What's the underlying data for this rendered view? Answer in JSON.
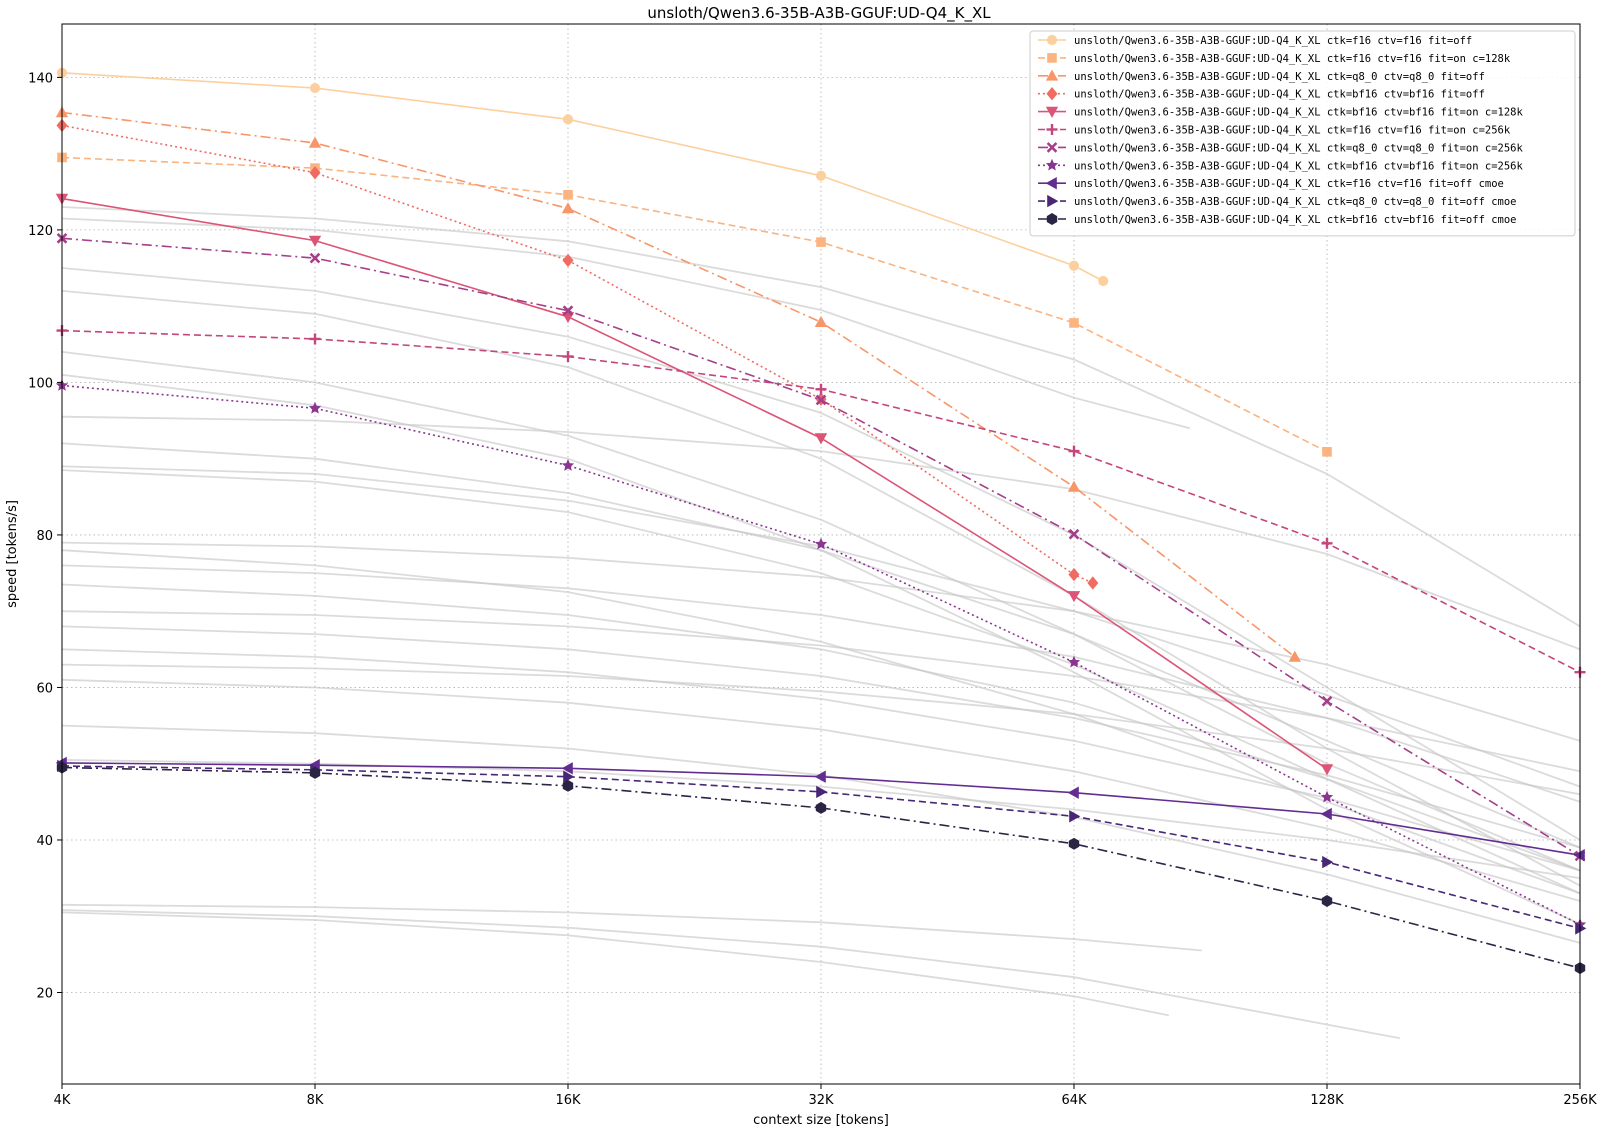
{
  "chart_data": {
    "type": "line",
    "title": "unsloth/Qwen3.6-35B-A3B-GGUF:UD-Q4_K_XL",
    "xlabel": "context size [tokens]",
    "ylabel": "speed [tokens/s]",
    "x_scale": "log2",
    "xlim": [
      4096,
      262144
    ],
    "ylim": [
      8,
      147
    ],
    "xticks": [
      {
        "value": 4096,
        "label": "4K"
      },
      {
        "value": 8192,
        "label": "8K"
      },
      {
        "value": 16384,
        "label": "16K"
      },
      {
        "value": 32768,
        "label": "32K"
      },
      {
        "value": 65536,
        "label": "64K"
      },
      {
        "value": 131072,
        "label": "128K"
      },
      {
        "value": 262144,
        "label": "256K"
      }
    ],
    "yticks": [
      20,
      40,
      60,
      80,
      100,
      120,
      140
    ],
    "grid": true,
    "legend_position": "top-right",
    "series": [
      {
        "name": "unsloth/Qwen3.6-35B-A3B-GGUF:UD-Q4_K_XL ctk=f16  ctv=f16  fit=off",
        "color": "#fcd09e",
        "marker": "circle",
        "dash": "solid",
        "x": [
          4096,
          8192,
          16384,
          32768,
          65536,
          71000
        ],
        "y": [
          140.6,
          138.6,
          134.5,
          127.1,
          115.3,
          113.3
        ]
      },
      {
        "name": "unsloth/Qwen3.6-35B-A3B-GGUF:UD-Q4_K_XL ctk=f16  ctv=f16  fit=on  c=128k",
        "color": "#fbb37f",
        "marker": "square",
        "dash": "dashed",
        "x": [
          4096,
          8192,
          16384,
          32768,
          65536,
          131072
        ],
        "y": [
          129.5,
          128.1,
          124.6,
          118.4,
          107.8,
          90.9
        ]
      },
      {
        "name": "unsloth/Qwen3.6-35B-A3B-GGUF:UD-Q4_K_XL ctk=q8_0 ctv=q8_0 fit=off",
        "color": "#f89669",
        "marker": "triangle-up",
        "dash": "dashdot",
        "x": [
          4096,
          8192,
          16384,
          32768,
          65536,
          120000
        ],
        "y": [
          135.4,
          131.4,
          122.8,
          107.9,
          86.3,
          64.0
        ]
      },
      {
        "name": "unsloth/Qwen3.6-35B-A3B-GGUF:UD-Q4_K_XL ctk=bf16 ctv=bf16 fit=off",
        "color": "#f06b62",
        "marker": "diamond",
        "dash": "dotted",
        "x": [
          4096,
          8192,
          16384,
          32768,
          65536,
          69000
        ],
        "y": [
          133.7,
          127.5,
          116.0,
          97.8,
          74.8,
          73.7
        ]
      },
      {
        "name": "unsloth/Qwen3.6-35B-A3B-GGUF:UD-Q4_K_XL ctk=bf16 ctv=bf16 fit=on  c=128k",
        "color": "#dc5476",
        "marker": "triangle-down",
        "dash": "solid",
        "x": [
          4096,
          8192,
          16384,
          32768,
          65536,
          131072
        ],
        "y": [
          124.1,
          118.6,
          108.6,
          92.7,
          72.0,
          49.3
        ]
      },
      {
        "name": "unsloth/Qwen3.6-35B-A3B-GGUF:UD-Q4_K_XL ctk=f16  ctv=f16  fit=on  c=256k",
        "color": "#c4467c",
        "marker": "plus",
        "dash": "dashed",
        "x": [
          4096,
          8192,
          16384,
          32768,
          65536,
          131072,
          262144
        ],
        "y": [
          106.8,
          105.7,
          103.4,
          99.1,
          91.0,
          78.9,
          62.0
        ]
      },
      {
        "name": "unsloth/Qwen3.6-35B-A3B-GGUF:UD-Q4_K_XL ctk=q8_0 ctv=q8_0 fit=on  c=256k",
        "color": "#a53f8a",
        "marker": "x",
        "dash": "dashdot",
        "x": [
          4096,
          8192,
          16384,
          32768,
          65536,
          131072,
          262144
        ],
        "y": [
          118.9,
          116.3,
          109.4,
          97.7,
          80.1,
          58.2,
          37.9
        ]
      },
      {
        "name": "unsloth/Qwen3.6-35B-A3B-GGUF:UD-Q4_K_XL ctk=bf16 ctv=bf16 fit=on  c=256k",
        "color": "#8a3690",
        "marker": "star",
        "dash": "dotted",
        "x": [
          4096,
          8192,
          16384,
          32768,
          65536,
          131072,
          262144
        ],
        "y": [
          99.6,
          96.6,
          89.1,
          78.8,
          63.3,
          45.6,
          28.9
        ]
      },
      {
        "name": "unsloth/Qwen3.6-35B-A3B-GGUF:UD-Q4_K_XL ctk=f16  ctv=f16  fit=off cmoe",
        "color": "#632c91",
        "marker": "triangle-left",
        "dash": "solid",
        "x": [
          4096,
          8192,
          16384,
          32768,
          65536,
          131072,
          262144
        ],
        "y": [
          50.1,
          49.8,
          49.4,
          48.3,
          46.2,
          43.4,
          38.0
        ]
      },
      {
        "name": "unsloth/Qwen3.6-35B-A3B-GGUF:UD-Q4_K_XL ctk=q8_0 ctv=q8_0 fit=off cmoe",
        "color": "#482775",
        "marker": "triangle-right",
        "dash": "dashed",
        "x": [
          4096,
          8192,
          16384,
          32768,
          65536,
          131072,
          262144
        ],
        "y": [
          49.7,
          49.2,
          48.3,
          46.3,
          43.1,
          37.1,
          28.4
        ]
      },
      {
        "name": "unsloth/Qwen3.6-35B-A3B-GGUF:UD-Q4_K_XL ctk=bf16 ctv=bf16 fit=off cmoe",
        "color": "#2c2444",
        "marker": "hexagon",
        "dash": "dashdot",
        "x": [
          4096,
          8192,
          16384,
          32768,
          65536,
          131072,
          262144
        ],
        "y": [
          49.5,
          48.8,
          47.1,
          44.2,
          39.5,
          32.0,
          23.2
        ]
      }
    ],
    "background_series": [
      {
        "x": [
          4096,
          8192,
          16384,
          32768,
          65536,
          131072,
          262144
        ],
        "y": [
          123.0,
          121.5,
          118.5,
          112.5,
          103.0,
          88.0,
          68.0
        ]
      },
      {
        "x": [
          4096,
          8192,
          16384,
          32768,
          65536,
          131072,
          262144
        ],
        "y": [
          115.0,
          112.0,
          106.0,
          96.0,
          80.0,
          60.0,
          40.0
        ]
      },
      {
        "x": [
          4096,
          8192,
          16384,
          32768,
          65536,
          90000
        ],
        "y": [
          121.5,
          120.0,
          116.5,
          109.5,
          98.0,
          94.0
        ]
      },
      {
        "x": [
          4096,
          8192,
          16384,
          32768,
          65536,
          131072,
          262144
        ],
        "y": [
          112.0,
          109.0,
          102.0,
          90.0,
          72.0,
          52.0,
          34.0
        ]
      },
      {
        "x": [
          4096,
          8192,
          16384,
          32768,
          65536,
          131072,
          262144
        ],
        "y": [
          104.0,
          100.0,
          93.0,
          82.0,
          67.0,
          50.0,
          36.0
        ]
      },
      {
        "x": [
          4096,
          8192,
          16384,
          32768,
          65536,
          131072,
          262144
        ],
        "y": [
          101.0,
          97.0,
          90.0,
          78.0,
          62.0,
          44.0,
          29.0
        ]
      },
      {
        "x": [
          4096,
          8192,
          16384,
          32768,
          65536,
          131072,
          262144
        ],
        "y": [
          95.5,
          95.0,
          93.5,
          91.0,
          86.0,
          77.5,
          65.0
        ]
      },
      {
        "x": [
          4096,
          8192,
          16384,
          32768,
          65536,
          131072,
          262144
        ],
        "y": [
          92.0,
          90.0,
          85.5,
          78.0,
          67.0,
          53.0,
          39.0
        ]
      },
      {
        "x": [
          4096,
          8192,
          16384,
          32768,
          65536,
          131072,
          262144
        ],
        "y": [
          89.0,
          88.0,
          84.5,
          78.5,
          70.0,
          59.0,
          47.0
        ]
      },
      {
        "x": [
          4096,
          8192,
          16384,
          32768,
          65536,
          131072,
          262144
        ],
        "y": [
          88.5,
          87.0,
          83.0,
          75.0,
          63.0,
          48.0,
          33.0
        ]
      },
      {
        "x": [
          4096,
          8192,
          16384,
          32768,
          65536,
          131072,
          262144
        ],
        "y": [
          79.0,
          78.5,
          77.0,
          74.5,
          70.0,
          63.0,
          53.0
        ]
      },
      {
        "x": [
          4096,
          8192,
          16384,
          32768,
          65536,
          131072,
          262144
        ],
        "y": [
          78.0,
          76.0,
          72.5,
          66.0,
          56.5,
          45.0,
          33.0
        ]
      },
      {
        "x": [
          4096,
          8192,
          16384,
          32768,
          65536,
          131072,
          262144
        ],
        "y": [
          76.0,
          75.0,
          73.0,
          69.5,
          64.0,
          56.0,
          45.0
        ]
      },
      {
        "x": [
          4096,
          8192,
          16384,
          32768,
          65536,
          131072,
          262144
        ],
        "y": [
          73.5,
          72.0,
          69.5,
          65.0,
          58.0,
          48.0,
          36.0
        ]
      },
      {
        "x": [
          4096,
          8192,
          16384,
          32768,
          65536,
          131072,
          262144
        ],
        "y": [
          70.0,
          69.5,
          68.0,
          65.5,
          61.5,
          56.0,
          49.0
        ]
      },
      {
        "x": [
          4096,
          8192,
          16384,
          32768,
          65536,
          131072,
          262144
        ],
        "y": [
          68.0,
          67.0,
          65.0,
          61.5,
          56.0,
          48.5,
          39.0
        ]
      },
      {
        "x": [
          4096,
          8192,
          16384,
          32768,
          65536,
          131072,
          262144
        ],
        "y": [
          65.0,
          64.0,
          62.0,
          58.5,
          53.0,
          45.5,
          36.0
        ]
      },
      {
        "x": [
          4096,
          8192,
          16384,
          32768,
          65536,
          131072,
          262144
        ],
        "y": [
          63.0,
          62.5,
          61.5,
          59.5,
          56.5,
          52.0,
          46.0
        ]
      },
      {
        "x": [
          4096,
          8192,
          16384,
          32768,
          65536,
          131072,
          262144
        ],
        "y": [
          61.0,
          60.0,
          58.0,
          54.5,
          49.0,
          41.5,
          32.0
        ]
      },
      {
        "x": [
          4096,
          8192,
          16384,
          32768,
          65536,
          131072,
          262144
        ],
        "y": [
          55.0,
          54.0,
          52.0,
          48.5,
          43.0,
          35.5,
          26.5
        ]
      },
      {
        "x": [
          4096,
          8192,
          16384,
          32768,
          65536,
          131072,
          262144
        ],
        "y": [
          50.5,
          50.0,
          49.0,
          47.0,
          44.0,
          40.0,
          35.0
        ]
      },
      {
        "x": [
          4096,
          8192,
          16384,
          32768,
          65536,
          93000
        ],
        "y": [
          31.5,
          31.2,
          30.5,
          29.2,
          27.0,
          25.5
        ]
      },
      {
        "x": [
          4096,
          8192,
          16384,
          32768,
          65536,
          160000
        ],
        "y": [
          30.8,
          30.0,
          28.5,
          26.0,
          22.0,
          14.0
        ]
      },
      {
        "x": [
          4096,
          8192,
          16384,
          32768,
          65536,
          85000
        ],
        "y": [
          30.5,
          29.5,
          27.5,
          24.0,
          19.5,
          17.0
        ]
      }
    ]
  }
}
